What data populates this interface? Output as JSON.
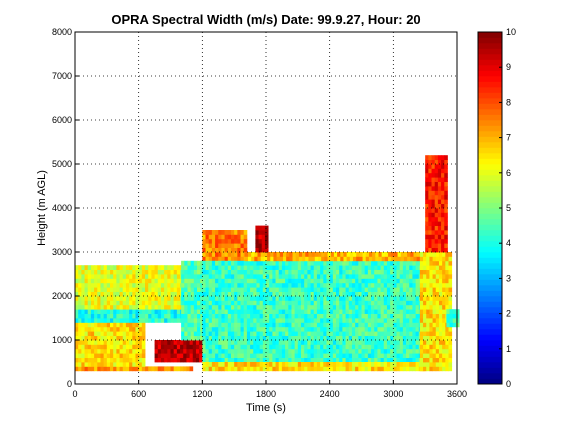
{
  "chart_data": {
    "type": "heatmap",
    "title": "OPRA Spectral Width (m/s)  Date: 99.9.27, Hour: 20",
    "xlabel": "Time (s)",
    "ylabel": "Height (m AGL)",
    "xlim": [
      0,
      3600
    ],
    "ylim": [
      0,
      8000
    ],
    "xticks": [
      0,
      600,
      1200,
      1800,
      2400,
      3000,
      3600
    ],
    "yticks": [
      0,
      1000,
      2000,
      3000,
      4000,
      5000,
      6000,
      7000,
      8000
    ],
    "grid": true,
    "colormap": "jet",
    "colorbar": {
      "range": [
        0,
        10
      ],
      "ticks": [
        0,
        1,
        2,
        3,
        4,
        5,
        6,
        7,
        8,
        9,
        10
      ]
    },
    "data_description": "Spectral width (m/s) field sampled on a 30 s x 100 m grid, estimated from the color image; null = no data.",
    "x_start": 0,
    "x_step": 30,
    "y_start": 300,
    "y_step": 100,
    "regions": [
      {
        "x": [
          0,
          1100
        ],
        "y": [
          300,
          400
        ],
        "value": 7.2
      },
      {
        "x": [
          0,
          650
        ],
        "y": [
          400,
          1400
        ],
        "value": 6.5
      },
      {
        "x": [
          0,
          1100
        ],
        "y": [
          1400,
          1700
        ],
        "value": 4.0
      },
      {
        "x": [
          0,
          1000
        ],
        "y": [
          1700,
          2700
        ],
        "value": 6.0
      },
      {
        "x": [
          750,
          1250
        ],
        "y": [
          500,
          1000
        ],
        "value": 9.5
      },
      {
        "x": [
          1000,
          1400
        ],
        "y": [
          1000,
          2800
        ],
        "value": 4.5
      },
      {
        "x": [
          1200,
          1600
        ],
        "y": [
          2800,
          3500
        ],
        "value": 7.5
      },
      {
        "x": [
          1200,
          3250
        ],
        "y": [
          500,
          2800
        ],
        "value": 4.3
      },
      {
        "x": [
          1200,
          3300
        ],
        "y": [
          300,
          500
        ],
        "value": 6.5
      },
      {
        "x": [
          1600,
          3300
        ],
        "y": [
          2800,
          3000
        ],
        "value": 7.0
      },
      {
        "x": [
          1700,
          1800
        ],
        "y": [
          3000,
          3600
        ],
        "value": 9.5
      },
      {
        "x": [
          3250,
          3550
        ],
        "y": [
          300,
          3000
        ],
        "value": 6.5
      },
      {
        "x": [
          3300,
          3500
        ],
        "y": [
          3000,
          5200
        ],
        "value": 8.5
      },
      {
        "x": [
          3500,
          3600
        ],
        "y": [
          1300,
          1700
        ],
        "value": 4.5
      }
    ]
  }
}
